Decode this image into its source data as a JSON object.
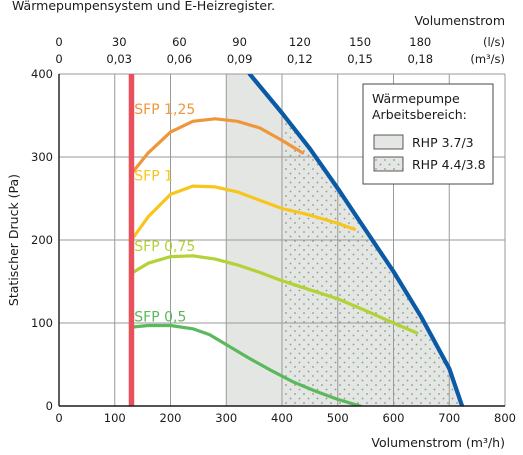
{
  "caption_fragment": "Wärmepumpensystem und E-Heizregister.",
  "chart_data": {
    "type": "line",
    "xlabel_bottom": "Volumenstrom (m³/h)",
    "xlabel_top": "Volumenstrom",
    "top_units_ls": "(l/s)",
    "top_units_m3s": "(m³/s)",
    "ylabel": "Statischer Druck (Pa)",
    "xlim": [
      0,
      800
    ],
    "ylim": [
      0,
      400
    ],
    "x_ticks": [
      "0",
      "100",
      "200",
      "300",
      "400",
      "500",
      "600",
      "700",
      "800"
    ],
    "y_ticks": [
      "0",
      "100",
      "200",
      "300",
      "400"
    ],
    "top_ticks_ls": [
      "0",
      "30",
      "60",
      "90",
      "120",
      "150",
      "180"
    ],
    "top_ticks_m3s": [
      "0",
      "0,03",
      "0,06",
      "0,09",
      "0,12",
      "0,15",
      "0,18"
    ],
    "grid": true,
    "legend": {
      "title_line1": "Wärmepumpe",
      "title_line2": "Arbeitsbereich:",
      "items": [
        {
          "label": "RHP 3.7/3",
          "pattern": "plain",
          "fill": "#e4e6e3"
        },
        {
          "label": "RHP 4.4/3.8",
          "pattern": "dotted",
          "fill": "#e4e6e3"
        }
      ],
      "position": "top-right"
    },
    "colors": {
      "min_flow_line": "#e8505b",
      "fan_max_curve": "#0b5aa5",
      "area_fill": "#e4e6e3",
      "dots": "#8a9d8e"
    },
    "min_flow_line_x": 130,
    "regions": [
      {
        "name": "RHP 3.7/3",
        "x_start": 300,
        "note": "flow range 300 m³/h up to the max fan curve"
      },
      {
        "name": "RHP 4.4/3.8",
        "x_start": 400,
        "note": "flow range 400 m³/h up to the max fan curve"
      }
    ],
    "max_curve": {
      "x": [
        342,
        400,
        450,
        500,
        550,
        600,
        650,
        700,
        723
      ],
      "y": [
        400,
        353,
        310,
        262,
        212,
        162,
        107,
        45,
        0
      ]
    },
    "series": [
      {
        "name": "SFP 1,25",
        "color": "#f0963a",
        "x": [
          130,
          160,
          200,
          240,
          280,
          320,
          360,
          400,
          437
        ],
        "y": [
          280,
          305,
          330,
          343,
          346,
          343,
          335,
          320,
          305
        ]
      },
      {
        "name": "SFP 1",
        "color": "#f8c51c",
        "x": [
          130,
          160,
          200,
          240,
          280,
          320,
          360,
          400,
          450,
          500,
          530
        ],
        "y": [
          200,
          228,
          255,
          265,
          264,
          258,
          248,
          238,
          230,
          220,
          213
        ]
      },
      {
        "name": "SFP 0,75",
        "color": "#b2d235",
        "x": [
          130,
          160,
          200,
          240,
          280,
          320,
          360,
          400,
          450,
          500,
          550,
          600,
          642
        ],
        "y": [
          160,
          172,
          180,
          181,
          177,
          170,
          161,
          151,
          140,
          129,
          115,
          100,
          88
        ]
      },
      {
        "name": "SFP 0,5",
        "color": "#5cb85c",
        "x": [
          130,
          160,
          200,
          240,
          270,
          300,
          340,
          380,
          420,
          460,
          500,
          540
        ],
        "y": [
          95,
          97,
          97,
          93,
          86,
          74,
          58,
          43,
          29,
          18,
          8,
          0
        ]
      }
    ],
    "series_labels": [
      {
        "text": "SFP 1,25",
        "x": 135,
        "y": 358
      },
      {
        "text": "SFP 1",
        "x": 135,
        "y": 278
      },
      {
        "text": "SFP 0,75",
        "x": 135,
        "y": 193
      },
      {
        "text": "SFP 0,5",
        "x": 135,
        "y": 108
      }
    ]
  }
}
